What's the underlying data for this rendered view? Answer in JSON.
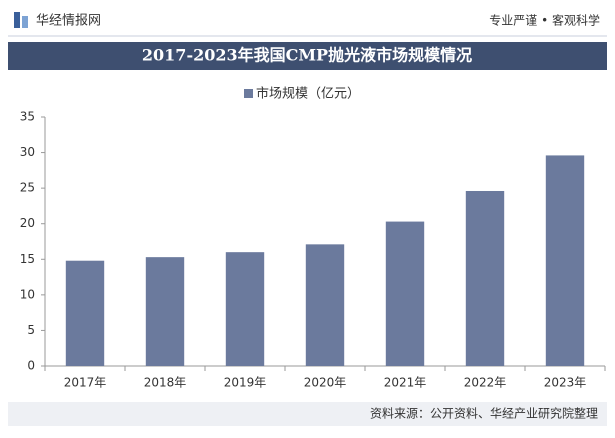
{
  "header": {
    "brand": "华经情报网",
    "slogan": "专业严谨 • 客观科学"
  },
  "chart_data": {
    "type": "bar",
    "title": "2017-2023年我国CMP抛光液市场规模情况",
    "categories": [
      "2017年",
      "2018年",
      "2019年",
      "2020年",
      "2021年",
      "2022年",
      "2023年"
    ],
    "series": [
      {
        "name": "市场规模（亿元）",
        "color": "#6b7a9d",
        "values": [
          14.8,
          15.3,
          16.0,
          17.1,
          20.3,
          24.6,
          29.6
        ]
      }
    ],
    "ylim": [
      0,
      35
    ],
    "yticks": [
      0,
      5,
      10,
      15,
      20,
      25,
      30,
      35
    ],
    "grid": false
  },
  "footer": {
    "source": "资料来源：公开资料、华经产业研究院整理"
  }
}
